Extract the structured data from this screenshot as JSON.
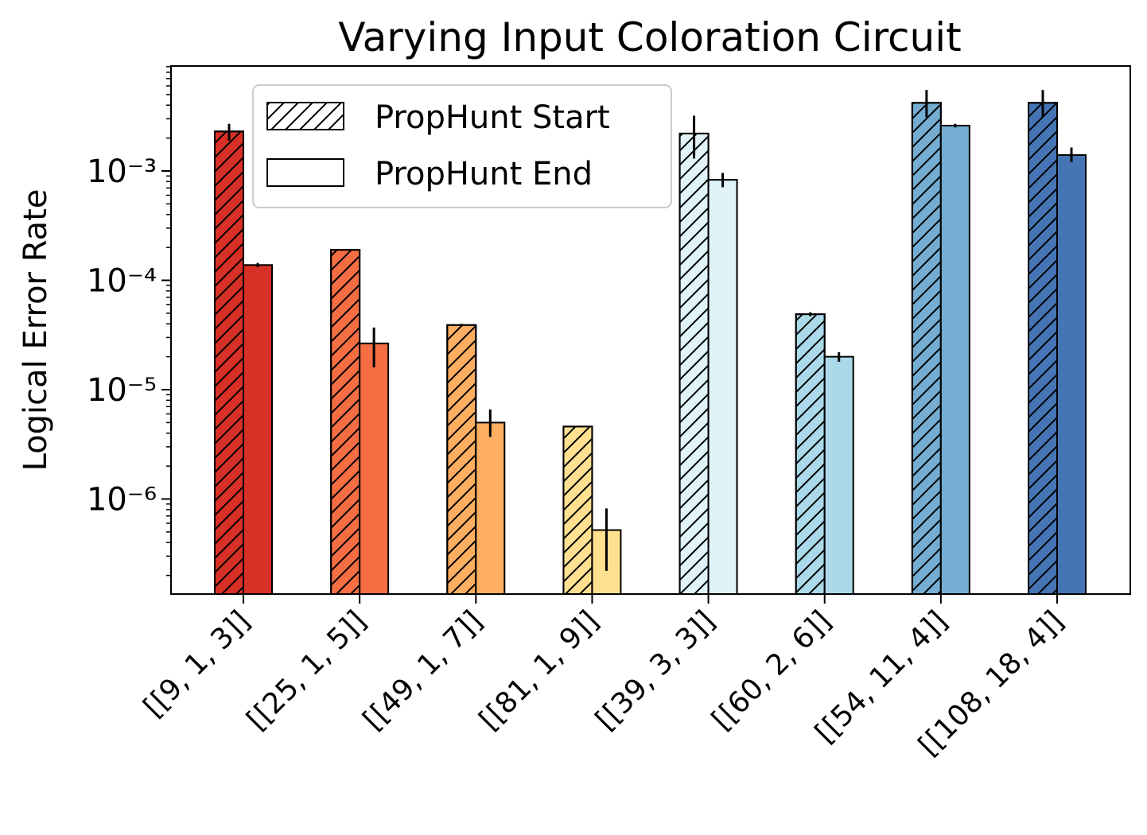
{
  "chart_data": {
    "type": "bar",
    "title": "Varying Input Coloration Circuit",
    "xlabel": "",
    "ylabel": "Logical Error Rate",
    "yscale": "log",
    "ylim": [
      1.3e-07,
      0.009
    ],
    "ytick_labels": [
      "10⁻⁶",
      "10⁻⁵",
      "10⁻⁴",
      "10⁻³"
    ],
    "categories": [
      "[[9, 1, 3]]",
      "[[25, 1, 5]]",
      "[[49, 1, 7]]",
      "[[81, 1, 9]]",
      "[[39, 3, 3]]",
      "[[60, 2, 6]]",
      "[[54, 11, 4]]",
      "[[108, 18, 4]]"
    ],
    "colors": [
      "#d73027",
      "#f46d43",
      "#fdae61",
      "#fee090",
      "#e0f3f8",
      "#abd9e9",
      "#74add1",
      "#4575b4"
    ],
    "series": [
      {
        "name": "PropHunt Start",
        "hatch": "diagonal",
        "values": [
          0.0023,
          0.00019,
          3.9e-05,
          4.6e-06,
          0.0022,
          4.9e-05,
          0.0042,
          0.0042
        ],
        "err_low": [
          0.0019,
          0.00019,
          3.8e-05,
          4.6e-06,
          0.0013,
          4.7e-05,
          0.0031,
          0.0031
        ],
        "err_high": [
          0.0027,
          0.00019,
          4e-05,
          4.6e-06,
          0.0032,
          5.1e-05,
          0.0055,
          0.0055
        ]
      },
      {
        "name": "PropHunt End",
        "hatch": "none",
        "values": [
          0.000138,
          2.65e-05,
          5e-06,
          5.2e-07,
          0.00083,
          2e-05,
          0.0026,
          0.0014
        ],
        "err_low": [
          0.000132,
          1.6e-05,
          3.7e-06,
          2.2e-07,
          0.00071,
          1.8e-05,
          0.0025,
          0.00121
        ],
        "err_high": [
          0.000144,
          3.7e-05,
          6.6e-06,
          8.2e-07,
          0.00096,
          2.2e-05,
          0.0027,
          0.00164
        ]
      }
    ],
    "legend": {
      "position": "top-left",
      "entries": [
        "PropHunt Start",
        "PropHunt End"
      ]
    },
    "grid": false
  }
}
